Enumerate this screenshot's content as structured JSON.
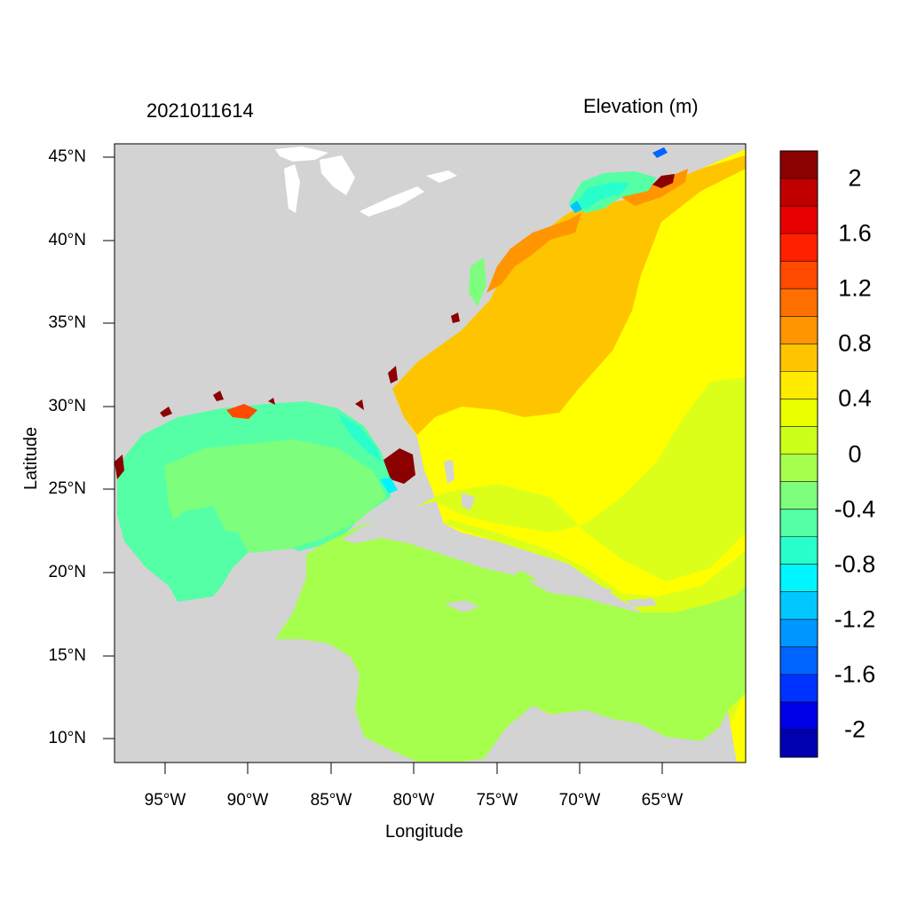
{
  "header": {
    "timestamp": "2021011614",
    "variable": "Elevation (m)"
  },
  "axes": {
    "xlabel": "Longitude",
    "ylabel": "Latitude",
    "lon_ticks": [
      "95°W",
      "90°W",
      "85°W",
      "80°W",
      "75°W",
      "70°W",
      "65°W"
    ],
    "lat_ticks": [
      "45°N",
      "40°N",
      "35°N",
      "30°N",
      "25°N",
      "20°N",
      "15°N",
      "10°N"
    ]
  },
  "colorbar": {
    "labels": [
      "2",
      "1.6",
      "1.2",
      "0.8",
      "0.4",
      "0",
      "-0.4",
      "-0.8",
      "-1.2",
      "-1.6",
      "-2"
    ],
    "colors": [
      "#8b0000",
      "#c00000",
      "#e60000",
      "#ff2000",
      "#ff4a00",
      "#ff7000",
      "#ff9500",
      "#ffc400",
      "#ffeb00",
      "#eaff00",
      "#ccff1a",
      "#a6ff4d",
      "#7dff7d",
      "#55ffa6",
      "#29ffcc",
      "#00f5ff",
      "#00c8ff",
      "#0096ff",
      "#0064ff",
      "#0032ff",
      "#0000e6",
      "#0000b0"
    ]
  },
  "colors": {
    "land": "#d3d3d3",
    "lakes": "#ffffff"
  }
}
